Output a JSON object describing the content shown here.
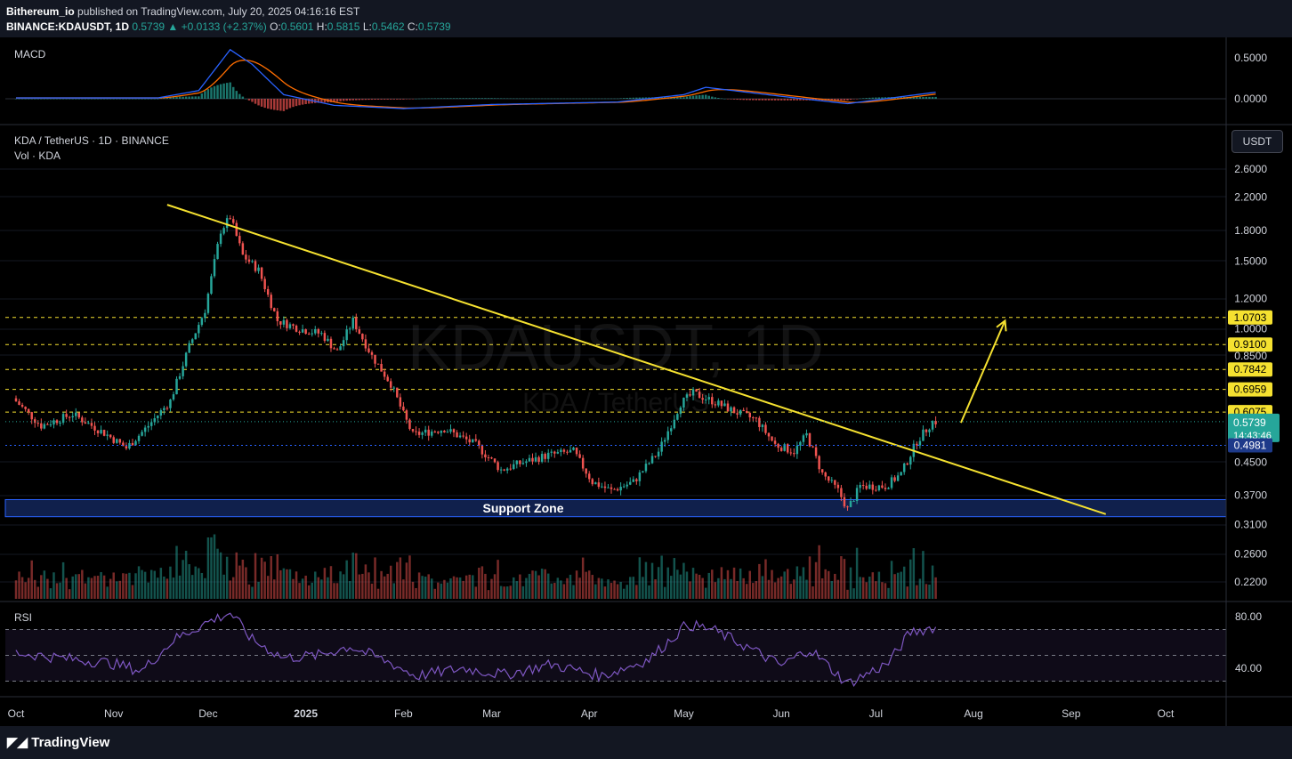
{
  "header": {
    "publisher": "Bithereum_io",
    "published_text": "published on TradingView.com, July 20, 2025 04:16:16 EST",
    "symbol": "BINANCE:KDAUSDT, 1D",
    "last": "0.5739",
    "change": "+0.0133 (+2.37%)",
    "open": "0.5601",
    "high": "0.5815",
    "low": "0.5462",
    "close": "0.5739",
    "o_label": "O:",
    "h_label": "H:",
    "l_label": "L:",
    "c_label": "C:"
  },
  "macd_panel": {
    "title": "MACD",
    "ticks": [
      "0.5000",
      "0.0000"
    ]
  },
  "main_panel": {
    "title": "KDA / TetherUS · 1D · BINANCE",
    "volume_label": "Vol · KDA",
    "currency_button": "USDT",
    "watermark": "KDAUSDT, 1D",
    "watermark_sub": "KDA / TetherUS",
    "support_label": "Support Zone",
    "price_ticks": [
      "2.6000",
      "2.2000",
      "1.8000",
      "1.5000",
      "1.2000",
      "1.0000",
      "0.8500",
      "0.4500",
      "0.3700",
      "0.3100",
      "0.2600",
      "0.2200"
    ],
    "last_price": "0.5739",
    "countdown": "14:43:46",
    "prev_level": "0.4981"
  },
  "rsi_panel": {
    "title": "RSI",
    "ticks": [
      "80.00",
      "40.00"
    ]
  },
  "time_axis": [
    "Oct",
    "Nov",
    "Dec",
    "2025",
    "Feb",
    "Mar",
    "Apr",
    "May",
    "Jun",
    "Jul",
    "Aug",
    "Sep",
    "Oct"
  ],
  "footer": {
    "brand": "TradingView"
  },
  "colors": {
    "up": "#26a69a",
    "down": "#ef5350",
    "trendline": "#f5e130",
    "resistance": "#f5e130",
    "support_zone": "#1e3a8a",
    "rsi": "#7e57c2",
    "macd": "#2962ff",
    "signal": "#ff6d00"
  },
  "chart_data": {
    "type": "candlestick",
    "symbol": "KDA / TetherUS",
    "interval": "1D",
    "exchange": "BINANCE",
    "y_scale": "log",
    "ylim": [
      0.19,
      3.0
    ],
    "resistance_levels": [
      "1.0703",
      "0.9100",
      "0.7842",
      "0.6959",
      "0.6075"
    ],
    "support_zone": [
      0.325,
      0.36
    ],
    "trendline": {
      "from": [
        "2024-11-18",
        2.1
      ],
      "to": [
        "2025-09-12",
        0.33
      ]
    },
    "projection_arrow": {
      "from": [
        "2025-07-28",
        0.57
      ],
      "to": [
        "2025-08-11",
        1.05
      ]
    },
    "price_path": [
      [
        "2024-10-01",
        0.66
      ],
      [
        "2024-10-10",
        0.56
      ],
      [
        "2024-10-20",
        0.6
      ],
      [
        "2024-10-31",
        0.53
      ],
      [
        "2024-11-06",
        0.49
      ],
      [
        "2024-11-13",
        0.56
      ],
      [
        "2024-11-20",
        0.65
      ],
      [
        "2024-11-26",
        0.9
      ],
      [
        "2024-12-01",
        1.12
      ],
      [
        "2024-12-06",
        1.8
      ],
      [
        "2024-12-09",
        1.95
      ],
      [
        "2024-12-13",
        1.55
      ],
      [
        "2024-12-18",
        1.42
      ],
      [
        "2024-12-24",
        1.05
      ],
      [
        "2024-12-31",
        1.0
      ],
      [
        "2025-01-07",
        0.97
      ],
      [
        "2025-01-12",
        0.87
      ],
      [
        "2025-01-17",
        1.05
      ],
      [
        "2025-01-23",
        0.85
      ],
      [
        "2025-01-29",
        0.72
      ],
      [
        "2025-02-02",
        0.6
      ],
      [
        "2025-02-05",
        0.53
      ],
      [
        "2025-02-15",
        0.55
      ],
      [
        "2025-02-25",
        0.5
      ],
      [
        "2025-03-05",
        0.43
      ],
      [
        "2025-03-12",
        0.45
      ],
      [
        "2025-03-20",
        0.47
      ],
      [
        "2025-03-28",
        0.48
      ],
      [
        "2025-04-03",
        0.4
      ],
      [
        "2025-04-09",
        0.38
      ],
      [
        "2025-04-16",
        0.4
      ],
      [
        "2025-04-24",
        0.48
      ],
      [
        "2025-05-01",
        0.64
      ],
      [
        "2025-05-05",
        0.68
      ],
      [
        "2025-05-11",
        0.65
      ],
      [
        "2025-05-18",
        0.61
      ],
      [
        "2025-05-25",
        0.58
      ],
      [
        "2025-05-31",
        0.5
      ],
      [
        "2025-06-06",
        0.48
      ],
      [
        "2025-06-10",
        0.53
      ],
      [
        "2025-06-15",
        0.42
      ],
      [
        "2025-06-20",
        0.38
      ],
      [
        "2025-06-23",
        0.34
      ],
      [
        "2025-06-27",
        0.39
      ],
      [
        "2025-07-05",
        0.39
      ],
      [
        "2025-07-10",
        0.42
      ],
      [
        "2025-07-15",
        0.51
      ],
      [
        "2025-07-20",
        0.5739
      ]
    ],
    "rsi_range": [
      20,
      90
    ],
    "rsi_path": [
      [
        "2024-10-01",
        52
      ],
      [
        "2024-10-15",
        48
      ],
      [
        "2024-10-31",
        44
      ],
      [
        "2024-11-10",
        38
      ],
      [
        "2024-11-20",
        62
      ],
      [
        "2024-12-01",
        76
      ],
      [
        "2024-12-08",
        83
      ],
      [
        "2024-12-15",
        62
      ],
      [
        "2024-12-25",
        48
      ],
      [
        "2025-01-05",
        50
      ],
      [
        "2025-01-15",
        57
      ],
      [
        "2025-01-28",
        44
      ],
      [
        "2025-02-05",
        34
      ],
      [
        "2025-02-20",
        40
      ],
      [
        "2025-03-05",
        35
      ],
      [
        "2025-03-20",
        43
      ],
      [
        "2025-04-05",
        34
      ],
      [
        "2025-04-20",
        47
      ],
      [
        "2025-05-02",
        74
      ],
      [
        "2025-05-10",
        70
      ],
      [
        "2025-05-20",
        58
      ],
      [
        "2025-06-01",
        42
      ],
      [
        "2025-06-10",
        55
      ],
      [
        "2025-06-22",
        28
      ],
      [
        "2025-07-05",
        44
      ],
      [
        "2025-07-12",
        68
      ],
      [
        "2025-07-20",
        72
      ]
    ],
    "macd_range": [
      -0.25,
      0.7
    ],
    "macd_path": [
      [
        "2024-10-01",
        0.01
      ],
      [
        "2024-11-15",
        0.01
      ],
      [
        "2024-11-28",
        0.1
      ],
      [
        "2024-12-08",
        0.6
      ],
      [
        "2024-12-15",
        0.42
      ],
      [
        "2024-12-25",
        0.05
      ],
      [
        "2025-01-10",
        -0.08
      ],
      [
        "2025-02-01",
        -0.12
      ],
      [
        "2025-03-01",
        -0.07
      ],
      [
        "2025-04-10",
        -0.04
      ],
      [
        "2025-05-01",
        0.05
      ],
      [
        "2025-05-08",
        0.14
      ],
      [
        "2025-06-01",
        0.03
      ],
      [
        "2025-06-22",
        -0.06
      ],
      [
        "2025-07-20",
        0.08
      ]
    ]
  }
}
